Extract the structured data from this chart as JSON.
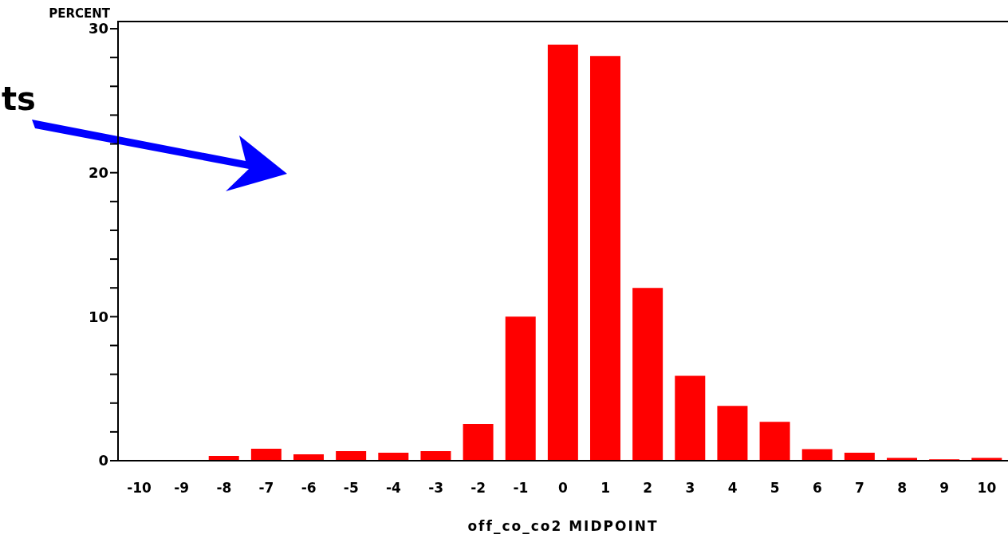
{
  "chart_data": {
    "type": "bar",
    "xlabel": "off_co_co2 MIDPOINT",
    "ylabel": "PERCENT",
    "annotations": [
      "ts"
    ],
    "categories": [
      "-10",
      "-9",
      "-8",
      "-7",
      "-6",
      "-5",
      "-4",
      "-3",
      "-2",
      "-1",
      "0",
      "1",
      "2",
      "3",
      "4",
      "5",
      "6",
      "7",
      "8",
      "9",
      "10"
    ],
    "values": [
      0,
      0,
      0.33,
      0.83,
      0.44,
      0.67,
      0.55,
      0.67,
      2.55,
      10.0,
      28.9,
      28.1,
      12.0,
      5.9,
      3.8,
      2.7,
      0.8,
      0.55,
      0.2,
      0.1,
      0.2
    ],
    "color": "#ff0000",
    "ylim": [
      0,
      30.5
    ],
    "yticks": [
      0,
      {
        "value": 2,
        "label": null
      },
      {
        "value": 4,
        "label": null
      },
      {
        "value": 6,
        "label": null
      },
      {
        "value": 8,
        "label": null
      },
      10,
      {
        "value": 12,
        "label": null
      },
      {
        "value": 14,
        "label": null
      },
      {
        "value": 16,
        "label": null
      },
      {
        "value": 18,
        "label": null
      },
      20,
      {
        "value": 22,
        "label": null
      },
      {
        "value": 24,
        "label": null
      },
      {
        "value": 26,
        "label": null
      },
      {
        "value": 28,
        "label": null
      },
      30
    ],
    "grid": false,
    "legend": false
  }
}
